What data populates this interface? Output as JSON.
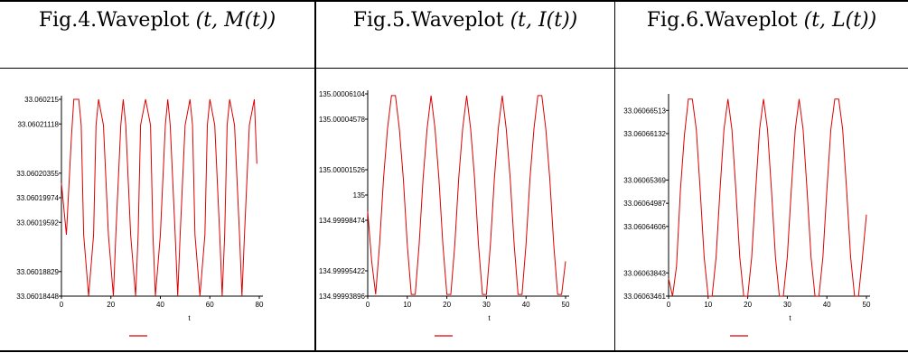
{
  "figures": [
    {
      "caption_prefix": "Fig.4.Waveplot",
      "caption_math": "(t, M(t))",
      "chart_data": {
        "type": "line",
        "xlabel": "t",
        "xlim": [
          0,
          80
        ],
        "x_ticks": [
          "0",
          "20",
          "40",
          "60",
          "80"
        ],
        "y_ticks": [
          "33.06018448",
          "33.06018829",
          "33.06019592",
          "33.06019974",
          "33.06020355",
          "33.06021118",
          "33.060215"
        ],
        "ylim": [
          33.06018448,
          33.060215
        ],
        "series": [
          {
            "color": "#dd0000",
            "x": [
              0,
              2,
              4,
              5,
              7,
              8,
              9,
              11,
              13,
              14,
              15,
              17,
              19,
              21,
              22,
              24,
              25,
              26,
              28,
              30,
              31,
              32,
              34,
              36,
              37,
              38,
              40,
              42,
              43,
              44,
              46,
              47,
              48,
              50,
              52,
              53,
              54,
              56,
              58,
              59,
              60,
              62,
              64,
              65,
              66,
              67,
              68,
              70,
              72,
              73,
              74,
              76,
              78,
              79
            ],
            "y": [
              33.060202,
              33.060194,
              33.060209,
              33.060215,
              33.060215,
              33.060211,
              33.060194,
              33.06018448,
              33.060194,
              33.060211,
              33.060215,
              33.060211,
              33.060194,
              33.06018448,
              33.060194,
              33.060211,
              33.060215,
              33.060211,
              33.060194,
              33.06018448,
              33.060194,
              33.060211,
              33.060215,
              33.060211,
              33.060194,
              33.06018448,
              33.060194,
              33.060211,
              33.060215,
              33.060211,
              33.060194,
              33.06018448,
              33.060194,
              33.060211,
              33.060215,
              33.060211,
              33.060194,
              33.06018448,
              33.060194,
              33.060211,
              33.060215,
              33.060211,
              33.060194,
              33.06018448,
              33.060194,
              33.060211,
              33.060215,
              33.060211,
              33.060194,
              33.06018448,
              33.060194,
              33.060211,
              33.060215,
              33.060205
            ]
          }
        ]
      }
    },
    {
      "caption_prefix": "Fig.5.Waveplot",
      "caption_math": "(t, I(t))",
      "chart_data": {
        "type": "line",
        "xlabel": "t",
        "xlim": [
          0,
          50
        ],
        "x_ticks": [
          "0",
          "10",
          "20",
          "30",
          "40",
          "50"
        ],
        "y_ticks": [
          "134.99993896",
          "134.99995422",
          "134.99998474",
          "135",
          "135.00001526",
          "135.00004578",
          "135.00006104"
        ],
        "ylim": [
          134.99993896,
          135.00006104
        ],
        "series": [
          {
            "color": "#dd0000",
            "x": [
              0,
              1,
              2,
              3,
              4,
              5,
              6,
              7,
              8,
              9,
              10,
              11,
              12,
              13,
              14,
              15,
              16,
              17,
              18,
              19,
              20,
              21,
              22,
              23,
              24,
              25,
              26,
              27,
              28,
              29,
              30,
              31,
              32,
              33,
              34,
              35,
              36,
              37,
              38,
              39,
              40,
              41,
              42,
              43,
              44,
              45,
              46,
              47,
              48,
              49,
              50
            ],
            "y": [
              134.99999,
              134.99996,
              134.99994,
              134.99997,
              135.00001,
              135.00004,
              135.00006,
              135.00006,
              135.00004,
              135.00001,
              134.99997,
              134.99994,
              134.99994,
              134.99997,
              135.00001,
              135.00004,
              135.00006,
              135.00004,
              135.00001,
              134.99997,
              134.99994,
              134.99994,
              134.99997,
              135.00001,
              135.00004,
              135.00006,
              135.00004,
              135.00001,
              134.99997,
              134.99994,
              134.99994,
              134.99997,
              135.00001,
              135.00004,
              135.00006,
              135.00004,
              135.00001,
              134.99997,
              134.99994,
              134.99994,
              134.99997,
              135.00001,
              135.00004,
              135.00006,
              135.00006,
              135.00004,
              135.00001,
              134.99997,
              134.99994,
              134.99994,
              134.99996
            ]
          }
        ]
      }
    },
    {
      "caption_prefix": "Fig.6.Waveplot",
      "caption_math": "(t, L(t))",
      "chart_data": {
        "type": "line",
        "xlabel": "t",
        "xlim": [
          0,
          50
        ],
        "x_ticks": [
          "0",
          "10",
          "20",
          "30",
          "40",
          "50"
        ],
        "y_ticks": [
          "33.06063461",
          "33.06063843",
          "33.06064606",
          "33.06064987",
          "33.06065369",
          "33.06066132",
          "33.06066513"
        ],
        "ylim": [
          33.06063461,
          33.06066725
        ],
        "series": [
          {
            "color": "#dd0000",
            "x": [
              0,
              1,
              2,
              3,
              4,
              5,
              6,
              7,
              8,
              9,
              10,
              11,
              12,
              13,
              14,
              15,
              16,
              17,
              18,
              19,
              20,
              21,
              22,
              23,
              24,
              25,
              26,
              27,
              28,
              29,
              30,
              31,
              32,
              33,
              34,
              35,
              36,
              37,
              38,
              39,
              40,
              41,
              42,
              43,
              44,
              45,
              46,
              47,
              48,
              49,
              50
            ],
            "y": [
              33.0606375,
              33.0606346,
              33.0606395,
              33.060652,
              33.060661,
              33.060667,
              33.060667,
              33.060662,
              33.060652,
              33.060641,
              33.0606346,
              33.0606346,
              33.060641,
              33.060652,
              33.060662,
              33.060667,
              33.060662,
              33.060652,
              33.060641,
              33.0606346,
              33.0606346,
              33.060641,
              33.060652,
              33.060662,
              33.060667,
              33.060662,
              33.060652,
              33.060641,
              33.0606346,
              33.0606346,
              33.060641,
              33.060652,
              33.060662,
              33.060667,
              33.060662,
              33.060652,
              33.060641,
              33.0606346,
              33.0606346,
              33.060641,
              33.060652,
              33.060662,
              33.060667,
              33.060667,
              33.060662,
              33.060652,
              33.060641,
              33.0606346,
              33.0606346,
              33.060641,
              33.060648
            ]
          }
        ]
      }
    }
  ]
}
